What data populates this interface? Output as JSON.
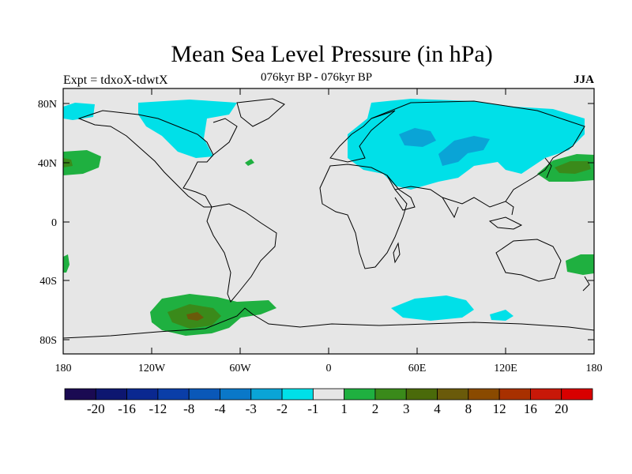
{
  "figure": {
    "title": "Mean Sea Level Pressure (in hPa)",
    "subtitle": "076kyr BP - 076kyr BP",
    "experiment": "Expt = tdxoX-tdwtX",
    "season": "JJA"
  },
  "axes": {
    "x_ticks": [
      "180",
      "120W",
      "60W",
      "0",
      "60E",
      "120E",
      "180"
    ],
    "y_ticks": [
      "80N",
      "40N",
      "0",
      "40S",
      "80S"
    ]
  },
  "colorbar": {
    "colors": [
      "#1a0a52",
      "#0d1670",
      "#0a2890",
      "#0a3ea8",
      "#0a58b8",
      "#0a78c8",
      "#0aa4d6",
      "#00e0e8",
      "#e6e6e6",
      "#1fb040",
      "#3a8a1a",
      "#4a6a0a",
      "#6a5a0a",
      "#8a4a00",
      "#a83000",
      "#c81808",
      "#d80000"
    ],
    "labels": [
      "-20",
      "-16",
      "-12",
      "-8",
      "-4",
      "-3",
      "-2",
      "-1",
      "1",
      "2",
      "3",
      "4",
      "8",
      "12",
      "16",
      "20"
    ]
  },
  "map_features": {
    "background": "#e6e6e6",
    "regions": [
      {
        "name": "northern-eurasia-low",
        "level": "-1",
        "color": "#00e0e8"
      },
      {
        "name": "central-asia-low",
        "level": "-2",
        "color": "#0aa4d6"
      },
      {
        "name": "north-america-low",
        "level": "-1",
        "color": "#00e0e8"
      },
      {
        "name": "southern-ocean-high",
        "level": "3",
        "color": "#3a8a1a"
      },
      {
        "name": "north-pacific-high",
        "level": "2",
        "color": "#1fb040"
      },
      {
        "name": "south-indian-low",
        "level": "-1",
        "color": "#00e0e8"
      }
    ]
  }
}
